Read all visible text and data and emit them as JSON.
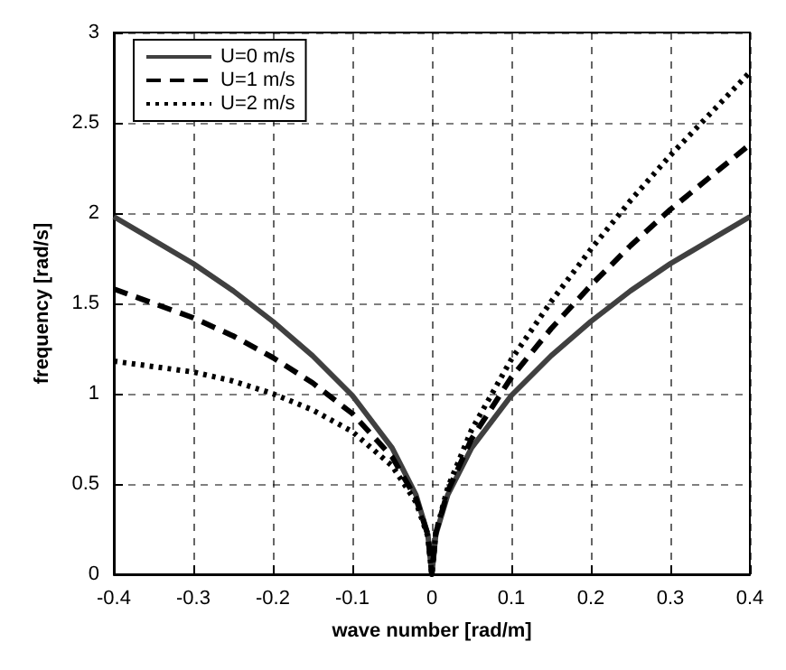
{
  "chart_data": {
    "type": "line",
    "xlabel": "wave number [rad/m]",
    "ylabel": "frequency [rad/s]",
    "x": [
      -0.4,
      -0.35,
      -0.3,
      -0.25,
      -0.2,
      -0.15,
      -0.1,
      -0.05,
      -0.02,
      -0.005,
      0,
      0.005,
      0.02,
      0.05,
      0.1,
      0.15,
      0.2,
      0.25,
      0.3,
      0.35,
      0.4
    ],
    "series": [
      {
        "name": "U=0 m/s",
        "color": "#404040",
        "line_style": "solid",
        "values": [
          1.98,
          1.85,
          1.72,
          1.57,
          1.4,
          1.21,
          0.99,
          0.7,
          0.44,
          0.22,
          0,
          0.22,
          0.44,
          0.7,
          0.99,
          1.21,
          1.4,
          1.57,
          1.72,
          1.85,
          1.98
        ]
      },
      {
        "name": "U=1 m/s",
        "color": "#000000",
        "line_style": "dashed",
        "values": [
          1.58,
          1.5,
          1.42,
          1.32,
          1.2,
          1.06,
          0.89,
          0.65,
          0.42,
          0.22,
          0,
          0.23,
          0.46,
          0.75,
          1.09,
          1.36,
          1.6,
          1.82,
          2.02,
          2.2,
          2.38
        ]
      },
      {
        "name": "U=2 m/s",
        "color": "#000000",
        "line_style": "dotted",
        "values": [
          1.18,
          1.15,
          1.12,
          1.07,
          1.0,
          0.91,
          0.79,
          0.6,
          0.4,
          0.21,
          0,
          0.23,
          0.48,
          0.8,
          1.19,
          1.51,
          1.8,
          2.07,
          2.32,
          2.55,
          2.78
        ]
      }
    ],
    "xlim": [
      -0.4,
      0.4
    ],
    "xticks": [
      -0.4,
      -0.3,
      -0.2,
      -0.1,
      0,
      0.1,
      0.2,
      0.3,
      0.4
    ],
    "ylim": [
      0,
      3
    ],
    "yticks": [
      0,
      0.5,
      1,
      1.5,
      2,
      2.5,
      3
    ],
    "grid": true,
    "legend": "top left",
    "marker": "none"
  }
}
